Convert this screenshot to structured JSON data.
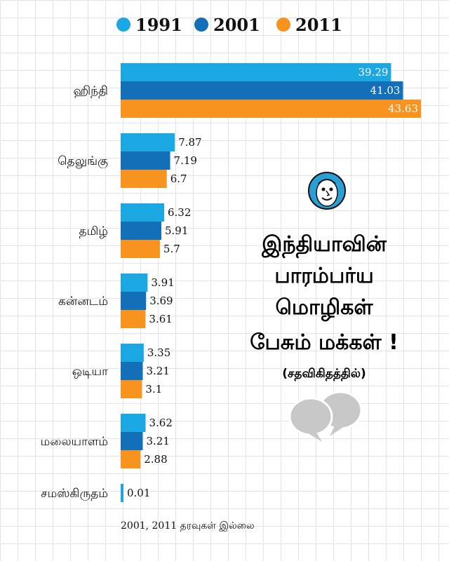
{
  "chart_data": {
    "type": "bar",
    "orientation": "horizontal",
    "title_lines": [
      "இந்தியாவின்",
      "பாரம்பர்ய",
      "மொழிகள்",
      "பேசும் மக்கள் !"
    ],
    "subtitle": "(சதவிகிதத்தில்)",
    "categories": [
      "ஹிந்தி",
      "தெலுங்கு",
      "தமிழ்",
      "கன்னடம்",
      "ஒடியா",
      "மலையாளம்",
      "சமஸ்கிருதம்"
    ],
    "series": [
      {
        "name": "1991",
        "color": "#1aa7e2",
        "values": [
          39.29,
          7.87,
          6.32,
          3.91,
          3.35,
          3.62,
          0.01
        ]
      },
      {
        "name": "2001",
        "color": "#136fb8",
        "values": [
          41.03,
          7.19,
          5.91,
          3.69,
          3.21,
          3.21,
          null
        ]
      },
      {
        "name": "2011",
        "color": "#f7931e",
        "values": [
          43.63,
          6.7,
          5.7,
          3.61,
          3.1,
          2.88,
          null
        ]
      }
    ],
    "value_labels": [
      [
        "39.29",
        "7.87",
        "6.32",
        "3.91",
        "3.35",
        "3.62",
        "0.01"
      ],
      [
        "41.03",
        "7.19",
        "5.91",
        "3.69",
        "3.21",
        "3.21",
        ""
      ],
      [
        "43.63",
        "6.7",
        "5.7",
        "3.61",
        "3.1",
        "2.88",
        ""
      ]
    ],
    "xlim": [
      0,
      43.63
    ],
    "legend_position": "top",
    "grid": false,
    "note": "2001, 2011 தரவுகள் இல்லை"
  },
  "colors": {
    "bubble_fill": "#c8c8c8",
    "logo_blue": "#2a9fd6"
  },
  "icons": {
    "logo": "cartoon-face-logo",
    "decoration": "speech-bubbles-icon"
  }
}
